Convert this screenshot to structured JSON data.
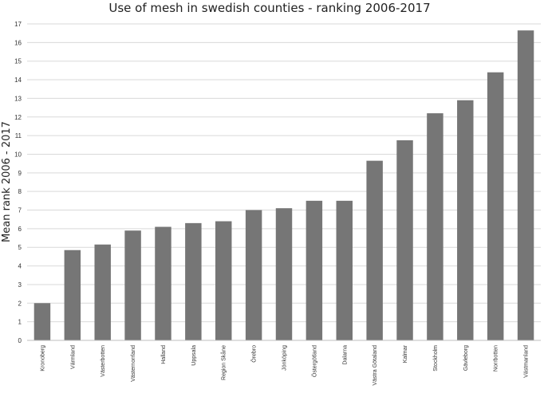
{
  "chart_data": {
    "type": "bar",
    "title": "Use of mesh in swedish counties - ranking 2006-2017",
    "ylabel": "Mean rank 2006 - 2017",
    "xlabel": "",
    "ylim": [
      0,
      17
    ],
    "yticks": [
      0,
      1,
      2,
      3,
      4,
      5,
      6,
      7,
      8,
      9,
      10,
      11,
      12,
      13,
      14,
      15,
      16,
      17
    ],
    "grid": true,
    "legend": "none",
    "bar_color": "#767676",
    "categories": [
      "Kronoberg",
      "Värmland",
      "Västerbotten",
      "Västernorrland",
      "Halland",
      "Uppsala",
      "Region Skåne",
      "Örebro",
      "Jönköping",
      "Östergötland",
      "Dalarna",
      "Västra Götaland",
      "Kalmar",
      "Stockholm",
      "Gävleborg",
      "Norrbotten",
      "Västmanland"
    ],
    "values": [
      2.0,
      4.85,
      5.15,
      5.9,
      6.1,
      6.3,
      6.4,
      7.0,
      7.1,
      7.5,
      7.5,
      9.65,
      10.75,
      12.2,
      12.9,
      14.4,
      16.65
    ]
  }
}
